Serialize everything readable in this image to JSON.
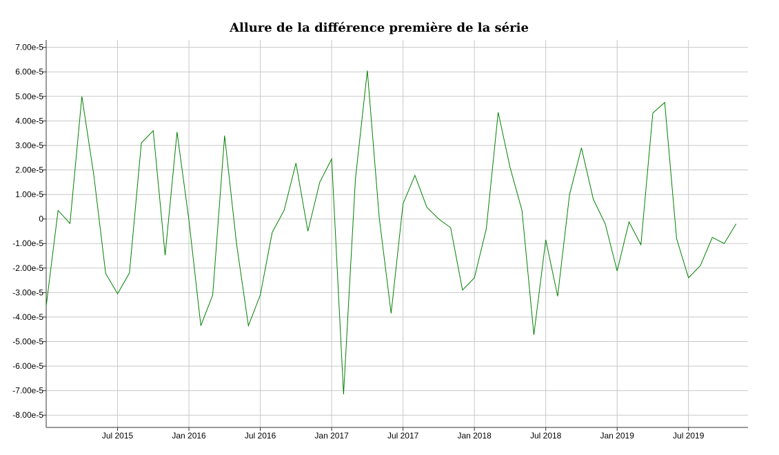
{
  "chart_data": {
    "type": "line",
    "title": "Allure de la différence première de la série",
    "xlabel": "",
    "ylabel": "",
    "grid": true,
    "x_start": "2015-01",
    "x_step": "1 month",
    "xlim": [
      "2015-01",
      "2019-12"
    ],
    "ylim": [
      -8.5e-05,
      7.3e-05
    ],
    "y_ticks": [
      {
        "value": 7e-05,
        "label": "7.00e-5"
      },
      {
        "value": 6e-05,
        "label": "6.00e-5"
      },
      {
        "value": 5e-05,
        "label": "5.00e-5"
      },
      {
        "value": 4e-05,
        "label": "4.00e-5"
      },
      {
        "value": 3e-05,
        "label": "3.00e-5"
      },
      {
        "value": 2e-05,
        "label": "2.00e-5"
      },
      {
        "value": 1e-05,
        "label": "1.00e-5"
      },
      {
        "value": 0,
        "label": "0"
      },
      {
        "value": -1e-05,
        "label": "-1.00e-5"
      },
      {
        "value": -2e-05,
        "label": "-2.00e-5"
      },
      {
        "value": -3e-05,
        "label": "-3.00e-5"
      },
      {
        "value": -4e-05,
        "label": "-4.00e-5"
      },
      {
        "value": -5e-05,
        "label": "-5.00e-5"
      },
      {
        "value": -6e-05,
        "label": "-6.00e-5"
      },
      {
        "value": -7e-05,
        "label": "-7.00e-5"
      },
      {
        "value": -8e-05,
        "label": "-8.00e-5"
      }
    ],
    "x_ticks": [
      {
        "date": "2015-07",
        "label": "Jul 2015"
      },
      {
        "date": "2016-01",
        "label": "Jan 2016"
      },
      {
        "date": "2016-07",
        "label": "Jul 2016"
      },
      {
        "date": "2017-01",
        "label": "Jan 2017"
      },
      {
        "date": "2017-07",
        "label": "Jul 2017"
      },
      {
        "date": "2018-01",
        "label": "Jan 2018"
      },
      {
        "date": "2018-07",
        "label": "Jul 2018"
      },
      {
        "date": "2019-01",
        "label": "Jan 2019"
      },
      {
        "date": "2019-07",
        "label": "Jul 2019"
      }
    ],
    "series": [
      {
        "color": "#008000",
        "values": [
          -3.55e-05,
          3.5e-06,
          -1.8e-06,
          5e-05,
          1.8e-05,
          -2.22e-05,
          -3.05e-05,
          -2.2e-05,
          3.1e-05,
          3.6e-05,
          -1.48e-05,
          3.55e-05,
          -5e-07,
          -4.35e-05,
          -3.1e-05,
          3.4e-05,
          -1e-05,
          -4.35e-05,
          -3.1e-05,
          -5.5e-06,
          3.5e-06,
          2.28e-05,
          -5e-06,
          1.5e-05,
          2.45e-05,
          -7.15e-05,
          1.65e-05,
          6.05e-05,
          5e-07,
          -3.85e-05,
          6.2e-06,
          1.78e-05,
          4.8e-06,
          0.0,
          -3.5e-06,
          -2.9e-05,
          -2.4e-05,
          -4e-06,
          4.35e-05,
          2.1e-05,
          3.5e-06,
          -4.72e-05,
          -8.5e-06,
          -3.15e-05,
          1e-05,
          2.9e-05,
          8e-06,
          -2e-06,
          -2.12e-05,
          -1.2e-06,
          -1.05e-05,
          4.32e-05,
          4.75e-05,
          -8e-06,
          -2.4e-05,
          -1.9e-05,
          -7.5e-06,
          -1e-05,
          -2e-06
        ]
      }
    ]
  }
}
